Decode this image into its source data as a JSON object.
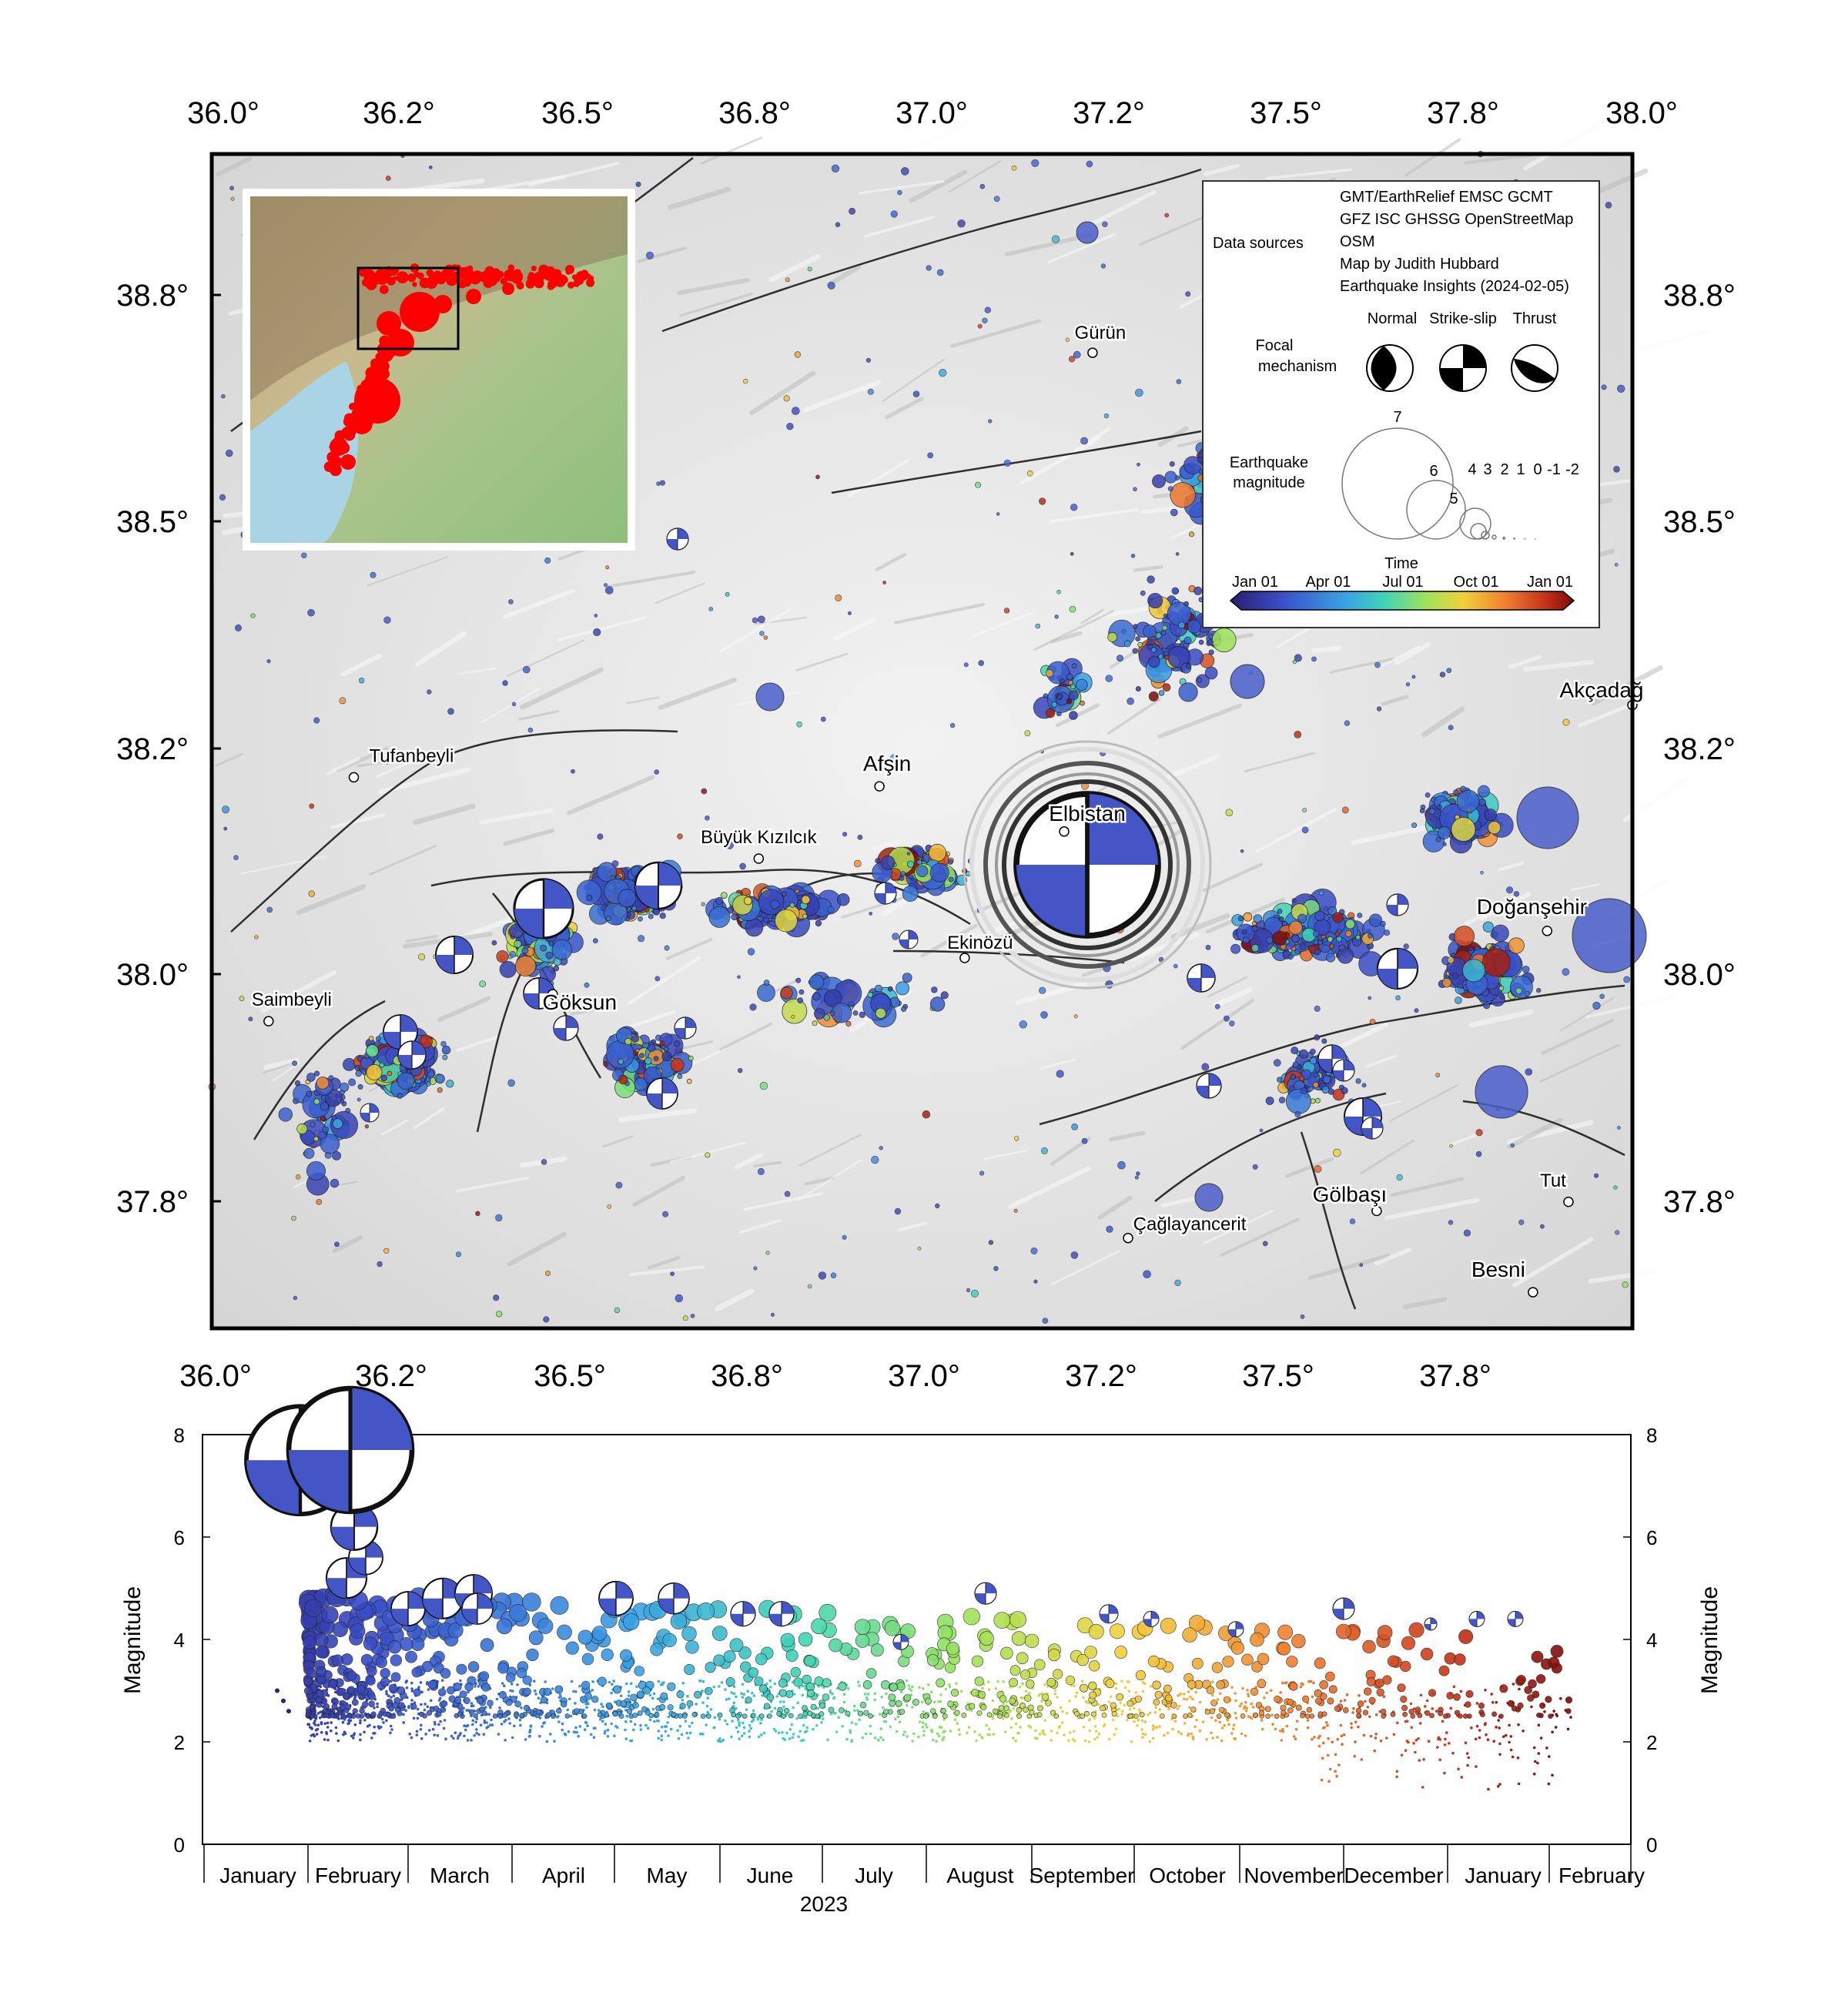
{
  "map": {
    "x_ticks": [
      "36.0°",
      "36.2°",
      "36.5°",
      "36.8°",
      "37.0°",
      "37.2°",
      "37.5°",
      "37.8°",
      "38.0°"
    ],
    "y_ticks": [
      "38.8°",
      "38.5°",
      "38.2°",
      "38.0°",
      "37.8°"
    ],
    "cities": [
      {
        "name": "Gürün",
        "lon": 37.24,
        "lat": 38.73
      },
      {
        "name": "Tufanbeyli",
        "lon": 36.2,
        "lat": 38.26
      },
      {
        "name": "Afşin",
        "lon": 36.94,
        "lat": 38.25
      },
      {
        "name": "Büyük Kızılcık",
        "lon": 36.77,
        "lat": 38.17
      },
      {
        "name": "Elbistan",
        "lon": 37.2,
        "lat": 38.2
      },
      {
        "name": "Doğanşehir",
        "lon": 37.88,
        "lat": 38.09
      },
      {
        "name": "Ekinözü",
        "lon": 37.06,
        "lat": 38.06
      },
      {
        "name": "Göksun",
        "lon": 36.48,
        "lat": 38.02
      },
      {
        "name": "Saimbeyli",
        "lon": 36.08,
        "lat": 37.99
      },
      {
        "name": "Gölbaşı",
        "lon": 37.64,
        "lat": 37.78
      },
      {
        "name": "Tut",
        "lon": 37.91,
        "lat": 37.79
      },
      {
        "name": "Çağlayancerit",
        "lon": 37.29,
        "lat": 37.75
      },
      {
        "name": "Besni",
        "lon": 37.86,
        "lat": 37.69
      },
      {
        "name": "Akçadağ",
        "lon": 38.0,
        "lat": 38.34
      }
    ],
    "legend": {
      "data_sources_label": "Data sources",
      "data_sources_lines": [
        "GMT/EarthRelief EMSC GCMT",
        "GFZ ISC GHSSG OpenStreetMap",
        "OSM",
        "Map by Judith Hubbard",
        "Earthquake Insights (2024-02-05)"
      ],
      "focal_label_1": "Focal",
      "focal_label_2": "mechanism",
      "mech_labels": [
        "Normal",
        "Strike-slip",
        "Thrust"
      ],
      "mag_label_1": "Earthquake",
      "mag_label_2": "magnitude",
      "mag_values": [
        "7",
        "6",
        "5",
        "4",
        "3",
        "2",
        "1",
        "0",
        "-1",
        "-2"
      ],
      "time_label": "Time",
      "time_ticks": [
        "Jan 01",
        "Apr 01",
        "Jul 01",
        "Oct 01",
        "Jan 01"
      ]
    },
    "colors": {
      "ocean": "#a8d4e6",
      "inset_dots": "#ff0000",
      "early": "#3a4fc8",
      "late": "#b2182b"
    }
  },
  "timeline": {
    "ylabel": "Magnitude",
    "y_ticks": [
      "0",
      "2",
      "4",
      "6",
      "8"
    ],
    "months": [
      "January",
      "February",
      "March",
      "April",
      "May",
      "June",
      "July",
      "August",
      "September",
      "October",
      "November",
      "December",
      "January",
      "February"
    ],
    "year_label": "2023"
  }
}
